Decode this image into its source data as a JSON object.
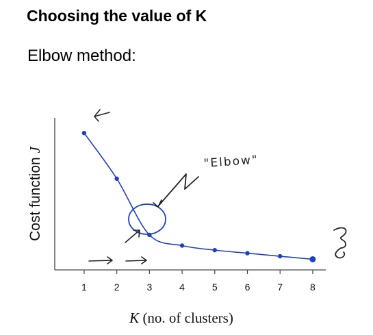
{
  "title": "Choosing the value of K",
  "subtitle": "Elbow method:",
  "annotation": "\"Elbow\"",
  "colors": {
    "line": "#2040c0",
    "ink": "#222222",
    "axis": "#444444"
  },
  "chart_data": {
    "type": "line",
    "xlabel_var": "K",
    "xlabel_rest": " (no. of clusters)",
    "ylabel": "Cost function ",
    "ylabel_var": "J",
    "x_ticks": [
      "1",
      "2",
      "3",
      "4",
      "5",
      "6",
      "7",
      "8"
    ],
    "x": [
      1,
      2,
      3,
      4,
      5,
      6,
      7,
      8
    ],
    "series": [
      {
        "values": [
          9.0,
          6.0,
          2.3,
          1.6,
          1.3,
          1.1,
          0.9,
          0.7
        ]
      }
    ],
    "xlim": [
      0.1,
      8.4
    ],
    "ylim": [
      0,
      10
    ],
    "grid": false,
    "elbow_at": 3
  }
}
